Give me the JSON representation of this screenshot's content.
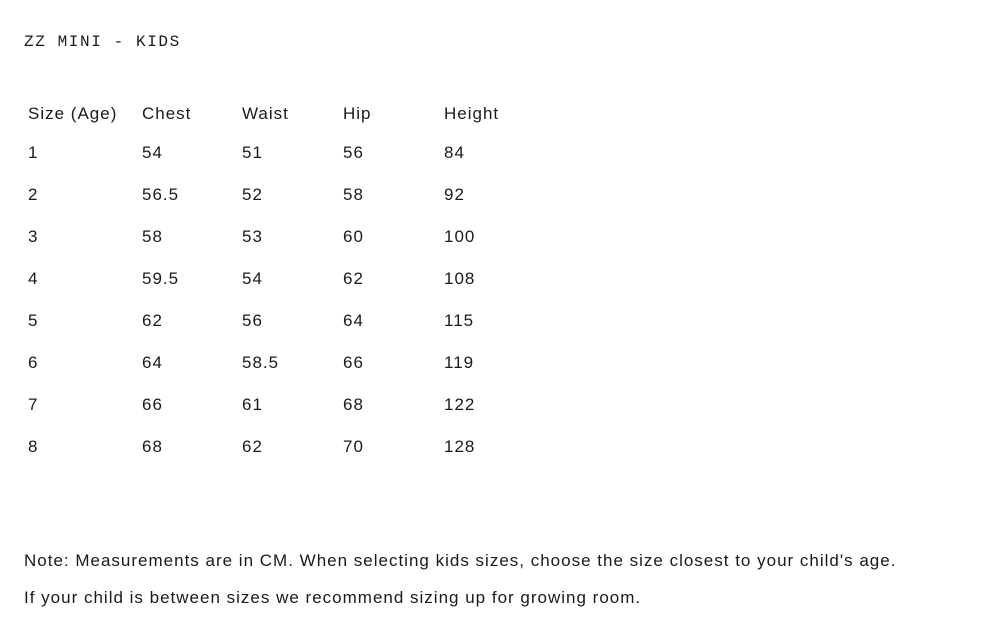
{
  "title": "ZZ MINI - KIDS",
  "table": {
    "headers": [
      "Size (Age)",
      "Chest",
      "Waist",
      "Hip",
      "Height"
    ],
    "rows": [
      [
        "1",
        "54",
        "51",
        "56",
        "84"
      ],
      [
        "2",
        "56.5",
        "52",
        "58",
        "92"
      ],
      [
        "3",
        "58",
        "53",
        "60",
        "100"
      ],
      [
        "4",
        "59.5",
        "54",
        "62",
        "108"
      ],
      [
        "5",
        "62",
        "56",
        "64",
        "115"
      ],
      [
        "6",
        "64",
        "58.5",
        "66",
        "119"
      ],
      [
        "7",
        "66",
        "61",
        "68",
        "122"
      ],
      [
        "8",
        "68",
        "62",
        "70",
        "128"
      ]
    ]
  },
  "notes": [
    "Note: Measurements are in CM. When selecting kids sizes, choose the size closest to your child's age.",
    "If your child is between sizes we recommend sizing up for growing room."
  ]
}
